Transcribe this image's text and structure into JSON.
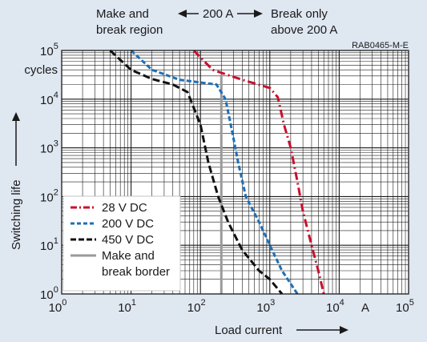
{
  "colors": {
    "background": "#dfe7f1",
    "plot_background": "#ffffff",
    "grid": "#1a1a1a",
    "series_28v": "#c8102e",
    "series_200v": "#1f6fb5",
    "series_450v": "#111111",
    "border_line": "#9a9a9a"
  },
  "chart_data": {
    "type": "line",
    "x_scale": "log",
    "y_scale": "log",
    "xlim": [
      1,
      100000
    ],
    "ylim": [
      1,
      100000
    ],
    "grid": true,
    "legend_position": "bottom-left",
    "xlabel": "Load current",
    "ylabel": "Switching life",
    "x_unit_label": "A",
    "y_unit_label": "cycles",
    "reference_code": "RAB0465-M-E",
    "region_labels": {
      "left_line1": "Make and",
      "left_line2": "break region",
      "middle": "200 A",
      "right_line1": "Break only",
      "right_line2": "above 200 A"
    },
    "x_ticks": [
      {
        "value": 1,
        "base": "10",
        "exp": "0"
      },
      {
        "value": 10,
        "base": "10",
        "exp": "1"
      },
      {
        "value": 100,
        "base": "10",
        "exp": "2"
      },
      {
        "value": 1000,
        "base": "10",
        "exp": "3"
      },
      {
        "value": 10000,
        "base": "10",
        "exp": "4"
      },
      {
        "value": 100000,
        "base": "10",
        "exp": "5"
      }
    ],
    "y_ticks": [
      {
        "value": 1,
        "base": "10",
        "exp": "0"
      },
      {
        "value": 10,
        "base": "10",
        "exp": "1"
      },
      {
        "value": 100,
        "base": "10",
        "exp": "2"
      },
      {
        "value": 1000,
        "base": "10",
        "exp": "3"
      },
      {
        "value": 10000,
        "base": "10",
        "exp": "4"
      },
      {
        "value": 100000,
        "base": "10",
        "exp": "5"
      }
    ],
    "reference_lines": [
      {
        "name": "Make and break border",
        "legend_line2": "break border",
        "legend_line1": "Make and",
        "x": 200
      }
    ],
    "series": [
      {
        "name": "28 V DC",
        "dash": "dashdot",
        "points": [
          [
            80,
            100000
          ],
          [
            150,
            40000
          ],
          [
            400,
            25000
          ],
          [
            1000,
            17000
          ],
          [
            1300,
            11000
          ],
          [
            1600,
            3000
          ],
          [
            2000,
            1000
          ],
          [
            2500,
            200
          ],
          [
            3000,
            50
          ],
          [
            4000,
            10
          ],
          [
            5000,
            3
          ],
          [
            6000,
            1
          ]
        ]
      },
      {
        "name": "200 V DC",
        "dash": "dash",
        "points": [
          [
            10,
            100000
          ],
          [
            20,
            40000
          ],
          [
            50,
            25000
          ],
          [
            100,
            22000
          ],
          [
            170,
            20000
          ],
          [
            230,
            10000
          ],
          [
            290,
            2000
          ],
          [
            350,
            500
          ],
          [
            450,
            100
          ],
          [
            700,
            30
          ],
          [
            1000,
            10
          ],
          [
            1500,
            3
          ],
          [
            2500,
            1
          ]
        ]
      },
      {
        "name": "450 V DC",
        "dash": "dash",
        "points": [
          [
            5,
            100000
          ],
          [
            10,
            40000
          ],
          [
            20,
            26000
          ],
          [
            40,
            20000
          ],
          [
            65,
            14000
          ],
          [
            100,
            3000
          ],
          [
            130,
            500
          ],
          [
            180,
            100
          ],
          [
            250,
            30
          ],
          [
            400,
            8
          ],
          [
            700,
            3
          ],
          [
            1000,
            2
          ],
          [
            1500,
            1
          ]
        ]
      }
    ]
  }
}
